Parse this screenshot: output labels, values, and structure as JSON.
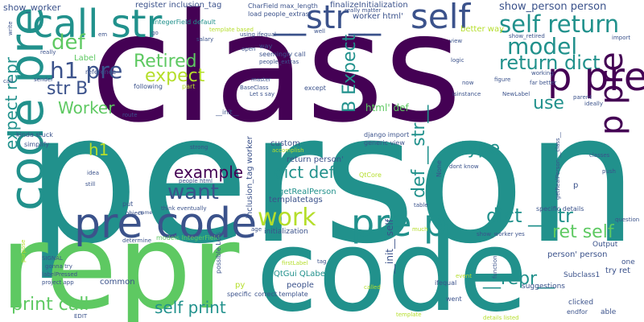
{
  "palette": {
    "purple": "#440154",
    "teal": "#21918c",
    "blue": "#3b528b",
    "green": "#5ec962",
    "yellow": "#b5de2b",
    "gray": "#6b7a8f"
  },
  "words": [
    {
      "text": "person",
      "color": "#21918c"
    },
    {
      "text": "class",
      "color": "#440154"
    },
    {
      "text": "repr",
      "color": "#5ec962"
    },
    {
      "text": "code",
      "color": "#21918c"
    },
    {
      "text": "code pre",
      "color": "#21918c"
    },
    {
      "text": "call str",
      "color": "#21918c"
    },
    {
      "text": "pre code",
      "color": "#3b528b"
    },
    {
      "text": "pre p",
      "color": "#21918c"
    },
    {
      "text": "__str__",
      "color": "#3b528b"
    },
    {
      "text": "self",
      "color": "#3b528b"
    },
    {
      "text": "self return",
      "color": "#21918c"
    },
    {
      "text": "model",
      "color": "#21918c"
    },
    {
      "text": "return dict",
      "color": "#21918c"
    },
    {
      "text": "p pre",
      "color": "#440154"
    },
    {
      "text": "p pre",
      "color": "#440154"
    },
    {
      "text": "def",
      "color": "#5ec962"
    },
    {
      "text": "h1 pre",
      "color": "#3b528b"
    },
    {
      "text": "expect",
      "color": "#b5de2b"
    },
    {
      "text": "Retired",
      "color": "#5ec962"
    },
    {
      "text": "str B",
      "color": "#3b528b"
    },
    {
      "text": "Worker",
      "color": "#5ec962"
    },
    {
      "text": "expect repr",
      "color": "#21918c"
    },
    {
      "text": "B Expect",
      "color": "#21918c"
    },
    {
      "text": "use",
      "color": "#21918c"
    },
    {
      "text": "h1",
      "color": "#b5de2b"
    },
    {
      "text": "example",
      "color": "#440154"
    },
    {
      "text": "dict def",
      "color": "#21918c"
    },
    {
      "text": "type",
      "color": "#21918c"
    },
    {
      "text": "def __str__",
      "color": "#21918c"
    },
    {
      "text": "want",
      "color": "#3b528b"
    },
    {
      "text": "work",
      "color": "#b5de2b"
    },
    {
      "text": "dict __str",
      "color": "#21918c"
    },
    {
      "text": "ret self",
      "color": "#5ec962"
    },
    {
      "text": "__repr__",
      "color": "#21918c"
    },
    {
      "text": "print call",
      "color": "#5ec962"
    },
    {
      "text": "self print",
      "color": "#21918c"
    },
    {
      "text": "show_worker",
      "color": "#3b528b"
    },
    {
      "text": "show_person person",
      "color": "#3b528b"
    },
    {
      "text": "register inclusion_tag",
      "color": "#3b528b"
    },
    {
      "text": "finalizeInitialization",
      "color": "#3b528b"
    },
    {
      "text": "IntegerField default",
      "color": "#21918c"
    },
    {
      "text": "CharField max_length",
      "color": "#3b528b"
    },
    {
      "text": "load people_extras",
      "color": "#3b528b"
    },
    {
      "text": "worker html'",
      "color": "#3b528b"
    },
    {
      "text": "really matter",
      "color": "#3b528b"
    },
    {
      "text": "better way",
      "color": "#b5de2b"
    },
    {
      "text": "salary",
      "color": "#3b528b"
    },
    {
      "text": "using ifequal",
      "color": "#3b528b"
    },
    {
      "text": "well",
      "color": "#3b528b"
    },
    {
      "text": "logic",
      "color": "#3b528b"
    },
    {
      "text": "figure",
      "color": "#3b528b"
    },
    {
      "text": "view",
      "color": "#3b528b"
    },
    {
      "text": "BaseClass",
      "color": "#3b528b"
    },
    {
      "text": "seemingly call",
      "color": "#3b528b"
    },
    {
      "text": "people_extras",
      "color": "#3b528b"
    },
    {
      "text": "master",
      "color": "#3b528b"
    },
    {
      "text": "way",
      "color": "#3b528b"
    },
    {
      "text": "Let s say",
      "color": "#3b528b"
    },
    {
      "text": "except",
      "color": "#3b528b"
    },
    {
      "text": "html' def",
      "color": "#5ec962"
    },
    {
      "text": "isinstance",
      "color": "#3b528b"
    },
    {
      "text": "NewLabel",
      "color": "#3b528b"
    },
    {
      "text": "far better",
      "color": "#3b528b"
    },
    {
      "text": "working",
      "color": "#3b528b"
    },
    {
      "text": "Label",
      "color": "#5ec962"
    },
    {
      "text": "reference",
      "color": "#3b528b"
    },
    {
      "text": "following",
      "color": "#3b528b"
    },
    {
      "text": "part",
      "color": "#b5de2b"
    },
    {
      "text": "return person'",
      "color": "#3b528b"
    },
    {
      "text": "custom",
      "color": "#3b528b"
    },
    {
      "text": "django import",
      "color": "#3b528b"
    },
    {
      "text": "generic view",
      "color": "#3b528b"
    },
    {
      "text": "dont know",
      "color": "#3b528b"
    },
    {
      "text": "getRealPerson",
      "color": "#21918c"
    },
    {
      "text": "templatetags",
      "color": "#3b528b"
    },
    {
      "text": "initialization",
      "color": "#3b528b"
    },
    {
      "text": "inclusion_tag worker",
      "color": "#3b528b"
    },
    {
      "text": "kinda stuck",
      "color": "#3b528b"
    },
    {
      "text": "simplify",
      "color": "#3b528b"
    },
    {
      "text": "strong",
      "color": "#3b528b"
    },
    {
      "text": "people html",
      "color": "#3b528b"
    },
    {
      "text": "think eventually",
      "color": "#3b528b"
    },
    {
      "text": "put",
      "color": "#3b528b"
    },
    {
      "text": "object",
      "color": "#3b528b"
    },
    {
      "text": "determine",
      "color": "#3b528b"
    },
    {
      "text": "models IntegerField",
      "color": "#5ec962"
    },
    {
      "text": "gonna try",
      "color": "#3b528b"
    },
    {
      "text": "labelPressed",
      "color": "#3b528b"
    },
    {
      "text": "project app",
      "color": "#3b528b"
    },
    {
      "text": "common",
      "color": "#3b528b"
    },
    {
      "text": "QtGui QLabel",
      "color": "#21918c"
    },
    {
      "text": "correct template",
      "color": "#3b528b"
    },
    {
      "text": "specific",
      "color": "#3b528b"
    },
    {
      "text": "people",
      "color": "#3b528b"
    },
    {
      "text": "person' person",
      "color": "#3b528b"
    },
    {
      "text": "Subclass1",
      "color": "#3b528b"
    },
    {
      "text": "try ret",
      "color": "#3b528b"
    },
    {
      "text": "suggestions",
      "color": "#3b528b"
    },
    {
      "text": "clicked",
      "color": "#3b528b"
    },
    {
      "text": "able",
      "color": "#3b528b"
    },
    {
      "text": "Output",
      "color": "#3b528b"
    },
    {
      "text": "show_worker yes",
      "color": "#3b528b"
    },
    {
      "text": "ifequal",
      "color": "#3b528b"
    },
    {
      "text": "went",
      "color": "#3b528b"
    },
    {
      "text": "endfor",
      "color": "#3b528b"
    },
    {
      "text": "specific details",
      "color": "#3b528b"
    },
    {
      "text": "__init__ self",
      "color": "#3b528b"
    },
    {
      "text": "tag",
      "color": "#3b528b"
    },
    {
      "text": "py",
      "color": "#b5de2b"
    },
    {
      "text": "EDIT",
      "color": "#3b528b"
    },
    {
      "text": "SIGNAL",
      "color": "#3b528b"
    },
    {
      "text": "one",
      "color": "#3b528b"
    },
    {
      "text": "p",
      "color": "#3b528b"
    },
    {
      "text": "classes",
      "color": "#3b528b"
    },
    {
      "text": "push",
      "color": "#3b528b"
    },
    {
      "text": "question",
      "color": "#3b528b"
    },
    {
      "text": "None",
      "color": "#3b528b"
    },
    {
      "text": "import",
      "color": "#3b528b"
    },
    {
      "text": "parent",
      "color": "#3b528b"
    },
    {
      "text": "ideally",
      "color": "#3b528b"
    },
    {
      "text": "now",
      "color": "#3b528b"
    },
    {
      "text": "sender",
      "color": "#3b528b"
    },
    {
      "text": "really",
      "color": "#3b528b"
    },
    {
      "text": "open",
      "color": "#3b528b"
    },
    {
      "text": "route",
      "color": "#3b528b"
    },
    {
      "text": "idea",
      "color": "#3b528b"
    },
    {
      "text": "still",
      "color": "#3b528b"
    },
    {
      "text": "name",
      "color": "#3b528b"
    },
    {
      "text": "function",
      "color": "#3b528b"
    },
    {
      "text": "table",
      "color": "#3b528b"
    },
    {
      "text": "QtCore",
      "color": "#b5de2b"
    },
    {
      "text": "much",
      "color": "#b5de2b"
    },
    {
      "text": "event",
      "color": "#b5de2b"
    },
    {
      "text": "template",
      "color": "#b5de2b"
    },
    {
      "text": "firstLabel",
      "color": "#b5de2b"
    },
    {
      "text": "accomplish",
      "color": "#b5de2b"
    },
    {
      "text": "called",
      "color": "#b5de2b"
    },
    {
      "text": "details listed",
      "color": "#b5de2b"
    },
    {
      "text": "possible Lets",
      "color": "#3b528b"
    },
    {
      "text": "template based",
      "color": "#b5de2b"
    },
    {
      "text": "show_retired",
      "color": "#3b528b"
    },
    {
      "text": "getRealPerson __class__",
      "color": "#3b528b"
    },
    {
      "text": "__init__",
      "color": "#3b528b"
    },
    {
      "text": "write",
      "color": "#3b528b"
    },
    {
      "text": "purpose",
      "color": "#b5de2b"
    },
    {
      "text": "call",
      "color": "#3b528b"
    },
    {
      "text": "em",
      "color": "#3b528b"
    },
    {
      "text": "go",
      "color": "#3b528b"
    },
    {
      "text": "age",
      "color": "#3b528b"
    }
  ]
}
